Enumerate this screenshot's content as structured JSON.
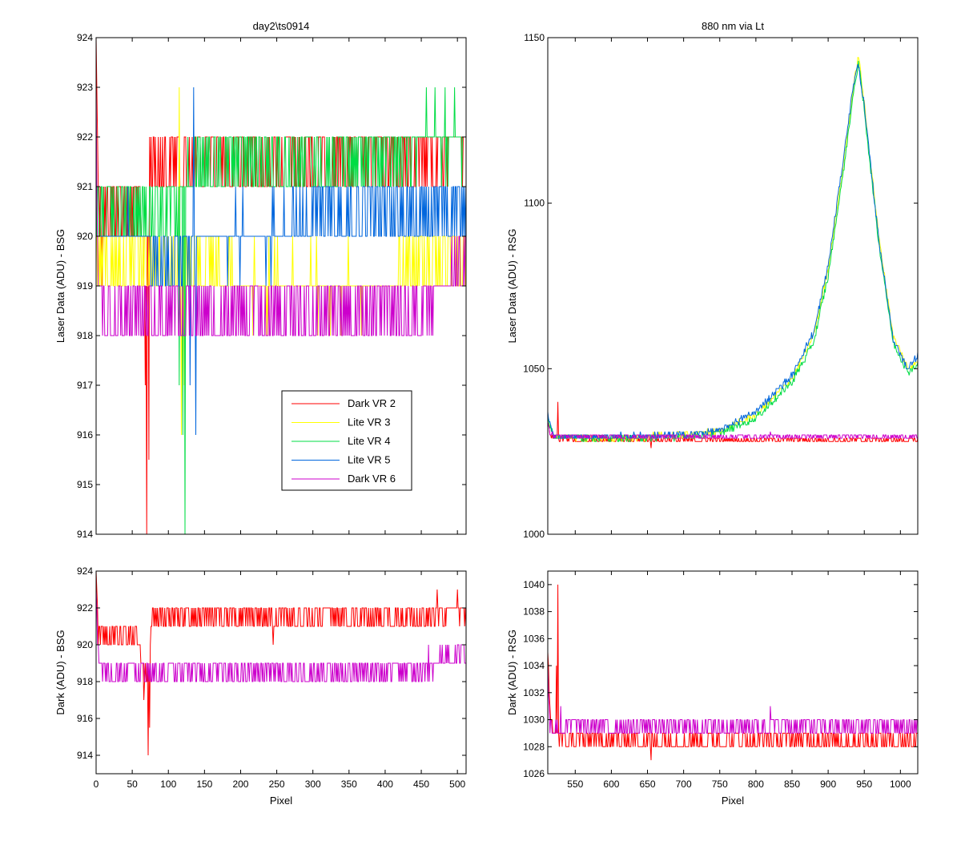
{
  "chart_data": [
    {
      "id": "top_left",
      "type": "line",
      "title": "day2\\ts0914",
      "xlabel": "",
      "ylabel": "Laser Data (ADU) - BSG",
      "xlim": [
        0,
        512
      ],
      "ylim": [
        914,
        924
      ],
      "xticks": [
        0,
        50,
        100,
        150,
        200,
        250,
        300,
        350,
        400,
        450,
        500
      ],
      "xtick_labels_shown": false,
      "yticks": [
        914,
        915,
        916,
        917,
        918,
        919,
        920,
        921,
        922,
        923,
        924
      ],
      "legend": {
        "position": "lower-right",
        "entries": [
          "Dark VR 2",
          "Lite VR 3",
          "Lite VR 4",
          "Lite VR 5",
          "Dark VR 6"
        ]
      },
      "series": [
        {
          "name": "Dark VR 2",
          "color": "#ff0000",
          "noise": true,
          "x": [
            0,
            3,
            6,
            20,
            40,
            60,
            68,
            75,
            90,
            150,
            250,
            350,
            450,
            512
          ],
          "y": [
            924,
            921,
            920.5,
            920.5,
            920.5,
            920.5,
            919,
            921.5,
            921.5,
            921.5,
            921.5,
            921.5,
            921.5,
            922
          ],
          "spikes": [
            [
              70,
              914
            ],
            [
              73,
              915.5
            ],
            [
              68,
              917
            ],
            [
              8,
              919
            ]
          ]
        },
        {
          "name": "Lite VR 3",
          "color": "#ffff00",
          "noise": true,
          "x": [
            0,
            50,
            100,
            150,
            200,
            250,
            300,
            350,
            400,
            450,
            512
          ],
          "y": [
            919.5,
            919.5,
            919.5,
            919.5,
            919,
            919,
            919,
            919,
            919,
            919.5,
            919.5
          ],
          "spikes": [
            [
              115,
              923
            ],
            [
              118,
              916
            ],
            [
              122,
              917
            ]
          ]
        },
        {
          "name": "Lite VR 4",
          "color": "#00dd44",
          "noise": true,
          "x": [
            0,
            50,
            100,
            150,
            200,
            250,
            300,
            350,
            400,
            450,
            512
          ],
          "y": [
            920.5,
            920.5,
            920.5,
            921.5,
            921.5,
            921.5,
            921.5,
            921.5,
            921.5,
            922,
            922
          ],
          "spikes": [
            [
              123,
              914
            ],
            [
              115,
              917
            ],
            [
              120,
              916
            ]
          ]
        },
        {
          "name": "Lite VR 5",
          "color": "#0066dd",
          "noise": true,
          "x": [
            0,
            50,
            100,
            150,
            200,
            250,
            300,
            350,
            400,
            450,
            512
          ],
          "y": [
            920,
            920,
            919.5,
            920,
            920,
            920,
            920.5,
            920.5,
            920.5,
            920.5,
            920.5
          ],
          "spikes": [
            [
              135,
              923
            ],
            [
              138,
              916
            ],
            [
              130,
              917
            ]
          ]
        },
        {
          "name": "Dark VR 6",
          "color": "#cc00cc",
          "noise": true,
          "x": [
            0,
            3,
            10,
            50,
            100,
            200,
            300,
            400,
            450,
            470,
            512
          ],
          "y": [
            923,
            919.5,
            918.5,
            918.5,
            918.5,
            918.5,
            918.5,
            918.5,
            918.5,
            919,
            919.5
          ],
          "spikes": []
        }
      ]
    },
    {
      "id": "top_right",
      "type": "line",
      "title": "880 nm via Lt",
      "xlabel": "",
      "ylabel": "Laser Data (ADU) - RSG",
      "xlim": [
        512,
        1024
      ],
      "ylim": [
        1000,
        1150
      ],
      "xticks": [
        550,
        600,
        650,
        700,
        750,
        800,
        850,
        900,
        950,
        1000
      ],
      "xtick_labels_shown": false,
      "yticks": [
        1000,
        1050,
        1100,
        1150
      ],
      "series": [
        {
          "name": "Dark VR 2",
          "color": "#ff0000",
          "noise": true,
          "x": [
            512,
            515,
            520,
            550,
            600,
            700,
            800,
            900,
            1000,
            1024
          ],
          "y": [
            1034,
            1030,
            1029,
            1028.5,
            1028.5,
            1028.5,
            1028.5,
            1028.5,
            1028.5,
            1028.5
          ],
          "spikes": [
            [
              526,
              1040
            ],
            [
              655,
              1026
            ]
          ]
        },
        {
          "name": "Lite VR 3",
          "color": "#ffff00",
          "noise": true,
          "x": [
            512,
            520,
            600,
            700,
            750,
            800,
            850,
            880,
            900,
            920,
            935,
            942,
            950,
            970,
            990,
            1010,
            1024
          ],
          "y": [
            1035,
            1029.5,
            1029,
            1030,
            1031,
            1036,
            1047,
            1060,
            1080,
            1110,
            1135,
            1145,
            1130,
            1090,
            1060,
            1050,
            1052
          ]
        },
        {
          "name": "Lite VR 4",
          "color": "#00dd44",
          "noise": true,
          "x": [
            512,
            520,
            600,
            700,
            750,
            800,
            850,
            880,
            900,
            920,
            935,
            942,
            950,
            970,
            990,
            1010,
            1024
          ],
          "y": [
            1035,
            1029.5,
            1029,
            1029.5,
            1030.5,
            1035,
            1046,
            1058,
            1078,
            1108,
            1133,
            1143,
            1128,
            1088,
            1058,
            1049,
            1051
          ]
        },
        {
          "name": "Lite VR 5",
          "color": "#0066dd",
          "noise": true,
          "x": [
            512,
            520,
            600,
            700,
            750,
            800,
            850,
            880,
            900,
            920,
            935,
            942,
            950,
            970,
            990,
            1010,
            1024
          ],
          "y": [
            1036,
            1029.5,
            1029.5,
            1030,
            1031.5,
            1037,
            1048,
            1061,
            1081,
            1112,
            1136,
            1142,
            1129,
            1089,
            1059,
            1050,
            1054
          ]
        },
        {
          "name": "Dark VR 6",
          "color": "#cc00cc",
          "noise": true,
          "x": [
            512,
            515,
            520,
            550,
            600,
            700,
            800,
            900,
            1000,
            1024
          ],
          "y": [
            1035,
            1030,
            1029.5,
            1029.5,
            1029.5,
            1029.5,
            1029.5,
            1029.5,
            1029.5,
            1029.5
          ],
          "spikes": [
            [
              820,
              1031
            ]
          ]
        }
      ]
    },
    {
      "id": "bottom_left",
      "type": "line",
      "title": "",
      "xlabel": "Pixel",
      "ylabel": "Dark (ADU) - BSG",
      "xlim": [
        0,
        512
      ],
      "ylim": [
        913,
        924
      ],
      "xticks": [
        0,
        50,
        100,
        150,
        200,
        250,
        300,
        350,
        400,
        450,
        500
      ],
      "xtick_labels_shown": true,
      "yticks": [
        914,
        916,
        918,
        920,
        922,
        924
      ],
      "series": [
        {
          "name": "Dark VR 2",
          "color": "#ff0000",
          "noise": true,
          "x": [
            0,
            3,
            8,
            30,
            55,
            62,
            70,
            78,
            90,
            150,
            250,
            350,
            450,
            500,
            512
          ],
          "y": [
            924,
            921,
            920.5,
            920.5,
            920.5,
            919.5,
            918,
            921.5,
            921.5,
            921.5,
            921.5,
            921.5,
            921.5,
            922,
            921.5
          ],
          "spikes": [
            [
              72,
              914
            ],
            [
              74,
              915.5
            ],
            [
              66,
              917
            ],
            [
              245,
              920
            ],
            [
              472,
              923
            ],
            [
              500,
              923
            ]
          ]
        },
        {
          "name": "Dark VR 6",
          "color": "#cc00cc",
          "noise": true,
          "x": [
            0,
            3,
            10,
            50,
            100,
            200,
            300,
            400,
            450,
            470,
            512
          ],
          "y": [
            923,
            919.5,
            918.5,
            918.5,
            918.5,
            918.5,
            918.5,
            918.5,
            918.5,
            919,
            919.5
          ],
          "spikes": [
            [
              460,
              920
            ],
            [
              508,
              920
            ]
          ]
        }
      ]
    },
    {
      "id": "bottom_right",
      "type": "line",
      "title": "",
      "xlabel": "Pixel",
      "ylabel": "Dark (ADU) - RSG",
      "xlim": [
        512,
        1024
      ],
      "ylim": [
        1026,
        1041
      ],
      "xticks": [
        550,
        600,
        650,
        700,
        750,
        800,
        850,
        900,
        950,
        1000
      ],
      "xtick_labels_shown": true,
      "yticks": [
        1026,
        1028,
        1030,
        1032,
        1034,
        1036,
        1038,
        1040
      ],
      "series": [
        {
          "name": "Dark VR 2",
          "color": "#ff0000",
          "noise": true,
          "x": [
            512,
            515,
            520,
            530,
            560,
            600,
            700,
            800,
            900,
            1000,
            1024
          ],
          "y": [
            1035,
            1030,
            1029,
            1028.5,
            1028.5,
            1028.5,
            1028.5,
            1028.5,
            1028.5,
            1028.5,
            1028.5
          ],
          "spikes": [
            [
              526,
              1040
            ],
            [
              524,
              1034
            ],
            [
              655,
              1027
            ]
          ]
        },
        {
          "name": "Dark VR 6",
          "color": "#cc00cc",
          "noise": true,
          "x": [
            512,
            515,
            520,
            550,
            600,
            700,
            800,
            900,
            1000,
            1024
          ],
          "y": [
            1034,
            1030,
            1029.5,
            1029.5,
            1029.5,
            1029.5,
            1029.5,
            1029.5,
            1029.5,
            1029.5
          ],
          "spikes": [
            [
              820,
              1031
            ],
            [
              530,
              1031
            ]
          ]
        }
      ]
    }
  ]
}
